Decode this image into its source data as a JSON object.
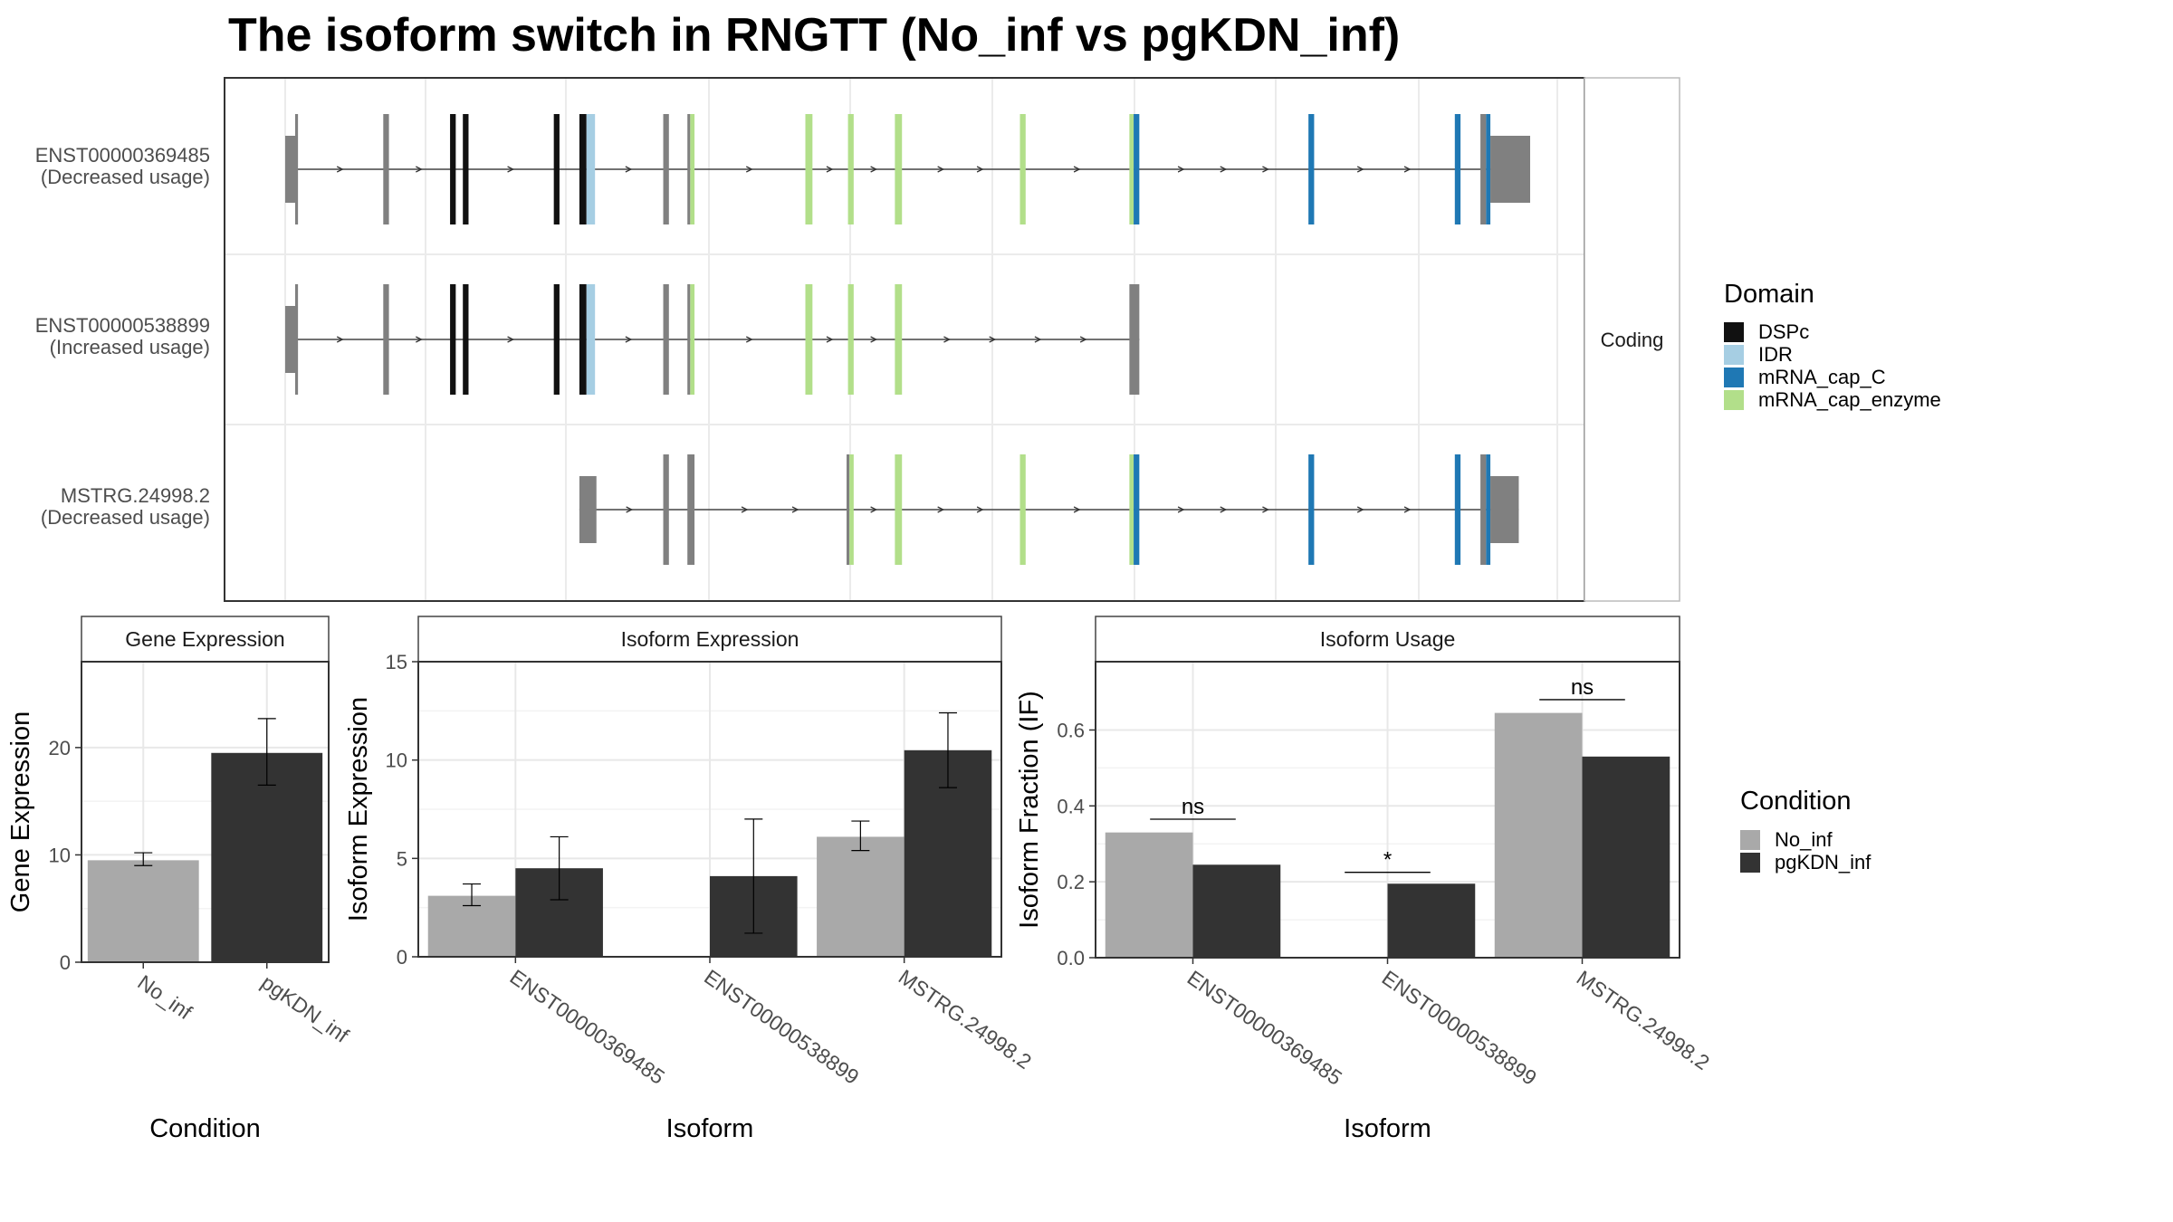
{
  "title": "The isoform switch in RNGTT (No_inf vs pgKDN_inf)",
  "colors": {
    "DSPc": "#111111",
    "IDR": "#a6cee3",
    "mRNA_cap_C": "#1f78b4",
    "mRNA_cap_enzyme": "#b2df8a",
    "utr": "#808080",
    "No_inf": "#a9a9a9",
    "pgKDN_inf": "#333333"
  },
  "structure": {
    "strip_label": "Coding",
    "isoforms": [
      {
        "id": "ENST00000369485",
        "usage": "(Decreased usage)",
        "exons": [
          {
            "s": 0,
            "e": 7,
            "c": "utr",
            "k": "u"
          },
          {
            "s": 7,
            "e": 9,
            "c": "utr",
            "k": "c"
          },
          {
            "s": 69,
            "e": 73,
            "c": "utr",
            "k": "c"
          },
          {
            "s": 116,
            "e": 120,
            "c": "DSPc",
            "k": "c"
          },
          {
            "s": 125,
            "e": 129,
            "c": "DSPc",
            "k": "c"
          },
          {
            "s": 189,
            "e": 193,
            "c": "DSPc",
            "k": "c"
          },
          {
            "s": 207,
            "e": 212,
            "c": "DSPc",
            "k": "c"
          },
          {
            "s": 212,
            "e": 218,
            "c": "IDR",
            "k": "c"
          },
          {
            "s": 266,
            "e": 270,
            "c": "utr",
            "k": "c"
          },
          {
            "s": 283,
            "e": 285,
            "c": "utr",
            "k": "c"
          },
          {
            "s": 285,
            "e": 288,
            "c": "mRNA_cap_enzyme",
            "k": "c"
          },
          {
            "s": 366,
            "e": 371,
            "c": "mRNA_cap_enzyme",
            "k": "c"
          },
          {
            "s": 396,
            "e": 400,
            "c": "mRNA_cap_enzyme",
            "k": "c"
          },
          {
            "s": 429,
            "e": 434,
            "c": "mRNA_cap_enzyme",
            "k": "c"
          },
          {
            "s": 517,
            "e": 521,
            "c": "mRNA_cap_enzyme",
            "k": "c"
          },
          {
            "s": 594,
            "e": 597,
            "c": "mRNA_cap_enzyme",
            "k": "c"
          },
          {
            "s": 597,
            "e": 601,
            "c": "mRNA_cap_C",
            "k": "c"
          },
          {
            "s": 720,
            "e": 724,
            "c": "mRNA_cap_C",
            "k": "c"
          },
          {
            "s": 823,
            "e": 827,
            "c": "mRNA_cap_C",
            "k": "c"
          },
          {
            "s": 841,
            "e": 845,
            "c": "utr",
            "k": "c"
          },
          {
            "s": 845,
            "e": 848,
            "c": "mRNA_cap_C",
            "k": "c"
          },
          {
            "s": 848,
            "e": 876,
            "c": "utr",
            "k": "u"
          }
        ]
      },
      {
        "id": "ENST00000538899",
        "usage": "(Increased usage)",
        "exons": [
          {
            "s": 0,
            "e": 7,
            "c": "utr",
            "k": "u"
          },
          {
            "s": 7,
            "e": 9,
            "c": "utr",
            "k": "c"
          },
          {
            "s": 69,
            "e": 73,
            "c": "utr",
            "k": "c"
          },
          {
            "s": 116,
            "e": 120,
            "c": "DSPc",
            "k": "c"
          },
          {
            "s": 125,
            "e": 129,
            "c": "DSPc",
            "k": "c"
          },
          {
            "s": 189,
            "e": 193,
            "c": "DSPc",
            "k": "c"
          },
          {
            "s": 207,
            "e": 212,
            "c": "DSPc",
            "k": "c"
          },
          {
            "s": 212,
            "e": 218,
            "c": "IDR",
            "k": "c"
          },
          {
            "s": 266,
            "e": 270,
            "c": "utr",
            "k": "c"
          },
          {
            "s": 283,
            "e": 285,
            "c": "utr",
            "k": "c"
          },
          {
            "s": 285,
            "e": 288,
            "c": "mRNA_cap_enzyme",
            "k": "c"
          },
          {
            "s": 366,
            "e": 371,
            "c": "mRNA_cap_enzyme",
            "k": "c"
          },
          {
            "s": 396,
            "e": 400,
            "c": "mRNA_cap_enzyme",
            "k": "c"
          },
          {
            "s": 429,
            "e": 434,
            "c": "mRNA_cap_enzyme",
            "k": "c"
          },
          {
            "s": 594,
            "e": 601,
            "c": "utr",
            "k": "c"
          }
        ]
      },
      {
        "id": "MSTRG.24998.2",
        "usage": "(Decreased usage)",
        "exons": [
          {
            "s": 207,
            "e": 219,
            "c": "utr",
            "k": "u"
          },
          {
            "s": 266,
            "e": 270,
            "c": "utr",
            "k": "c"
          },
          {
            "s": 283,
            "e": 288,
            "c": "utr",
            "k": "c"
          },
          {
            "s": 395,
            "e": 397,
            "c": "utr",
            "k": "c"
          },
          {
            "s": 397,
            "e": 400,
            "c": "mRNA_cap_enzyme",
            "k": "c"
          },
          {
            "s": 429,
            "e": 434,
            "c": "mRNA_cap_enzyme",
            "k": "c"
          },
          {
            "s": 517,
            "e": 521,
            "c": "mRNA_cap_enzyme",
            "k": "c"
          },
          {
            "s": 594,
            "e": 597,
            "c": "mRNA_cap_enzyme",
            "k": "c"
          },
          {
            "s": 597,
            "e": 601,
            "c": "mRNA_cap_C",
            "k": "c"
          },
          {
            "s": 720,
            "e": 724,
            "c": "mRNA_cap_C",
            "k": "c"
          },
          {
            "s": 823,
            "e": 827,
            "c": "mRNA_cap_C",
            "k": "c"
          },
          {
            "s": 841,
            "e": 845,
            "c": "utr",
            "k": "c"
          },
          {
            "s": 845,
            "e": 848,
            "c": "mRNA_cap_C",
            "k": "c"
          },
          {
            "s": 848,
            "e": 868,
            "c": "utr",
            "k": "u"
          }
        ]
      }
    ]
  },
  "legend_domain": {
    "title": "Domain",
    "items": [
      {
        "label": "DSPc",
        "color": "#111111"
      },
      {
        "label": "IDR",
        "color": "#a6cee3"
      },
      {
        "label": "mRNA_cap_C",
        "color": "#1f78b4"
      },
      {
        "label": "mRNA_cap_enzyme",
        "color": "#b2df8a"
      }
    ]
  },
  "legend_condition": {
    "title": "Condition",
    "items": [
      {
        "label": "No_inf",
        "color": "#a9a9a9"
      },
      {
        "label": "pgKDN_inf",
        "color": "#333333"
      }
    ]
  },
  "chart_data": [
    {
      "type": "bar",
      "panel_title": "Gene Expression",
      "xlabel": "Condition",
      "ylabel": "Gene Expression",
      "ylim": [
        0,
        28
      ],
      "yticks": [
        0,
        10,
        20
      ],
      "categories": [
        "No_inf",
        "pgKDN_inf"
      ],
      "values": [
        9.5,
        19.5
      ],
      "err_low": [
        9.0,
        16.5
      ],
      "err_high": [
        10.2,
        22.7
      ]
    },
    {
      "type": "bar",
      "panel_title": "Isoform Expression",
      "xlabel": "Isoform",
      "ylabel": "Isoform Expression",
      "ylim": [
        0,
        15
      ],
      "yticks": [
        0,
        5,
        10,
        15
      ],
      "categories": [
        "ENST00000369485",
        "ENST00000538899",
        "MSTRG.24998.2"
      ],
      "series": [
        {
          "name": "No_inf",
          "values": [
            3.1,
            0.0,
            6.1
          ],
          "err_low": [
            2.6,
            0.0,
            5.4
          ],
          "err_high": [
            3.7,
            0.0,
            6.9
          ]
        },
        {
          "name": "pgKDN_inf",
          "values": [
            4.5,
            4.1,
            10.5
          ],
          "err_low": [
            2.9,
            1.2,
            8.6
          ],
          "err_high": [
            6.1,
            7.0,
            12.4
          ]
        }
      ]
    },
    {
      "type": "bar",
      "panel_title": "Isoform Usage",
      "xlabel": "Isoform",
      "ylabel": "Isoform Fraction (IF)",
      "ylim": [
        0,
        0.78
      ],
      "yticks": [
        0.0,
        0.2,
        0.4,
        0.6
      ],
      "ytick_labels": [
        "0.0",
        "0.2",
        "0.4",
        "0.6"
      ],
      "categories": [
        "ENST00000369485",
        "ENST00000538899",
        "MSTRG.24998.2"
      ],
      "series": [
        {
          "name": "No_inf",
          "values": [
            0.33,
            0.0,
            0.645
          ]
        },
        {
          "name": "pgKDN_inf",
          "values": [
            0.245,
            0.195,
            0.53
          ]
        }
      ],
      "significance": [
        "ns",
        "*",
        "ns"
      ],
      "sig_y": [
        0.365,
        0.225,
        0.68
      ]
    }
  ]
}
